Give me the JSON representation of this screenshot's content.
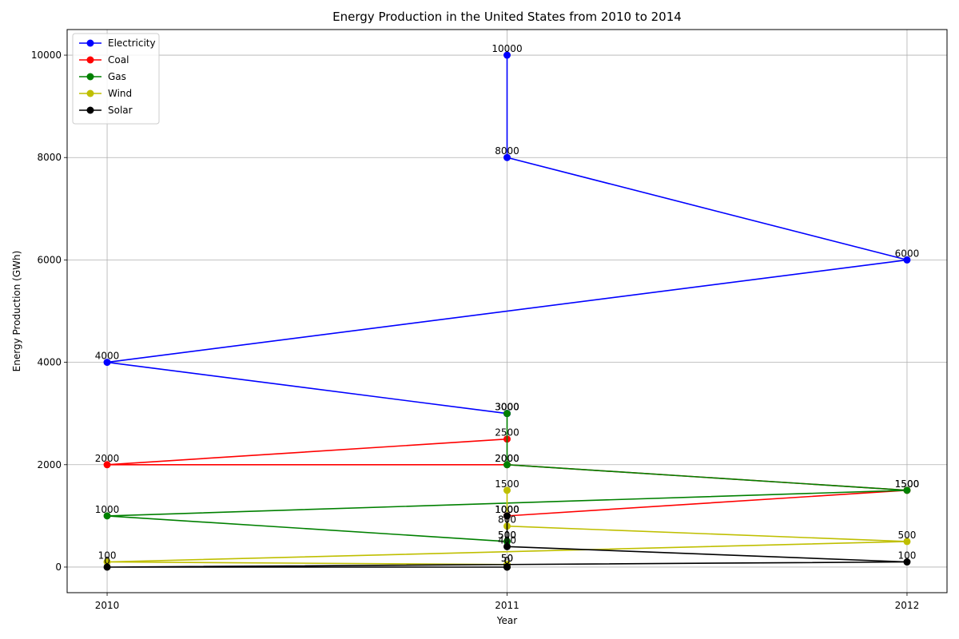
{
  "chart_data": {
    "type": "line",
    "title": "Energy Production in the United States from 2010 to 2014",
    "xlabel": "Year",
    "ylabel": "Energy Production (GWh)",
    "xlim": [
      2009.9,
      2012.1
    ],
    "ylim": [
      -500,
      10500
    ],
    "xticks": [
      2010,
      2011,
      2012
    ],
    "yticks": [
      0,
      2000,
      4000,
      6000,
      8000,
      10000
    ],
    "grid": true,
    "legend_position": "top-left",
    "series": [
      {
        "name": "Electricity",
        "color": "#0000ff",
        "x": [
          2011,
          2011,
          2012,
          2010,
          2011,
          2011
        ],
        "y": [
          10000,
          8000,
          6000,
          4000,
          3000,
          3000
        ]
      },
      {
        "name": "Coal",
        "color": "#ff0000",
        "x": [
          2011,
          2010,
          2011,
          2012,
          2011,
          2011
        ],
        "y": [
          2500,
          2000,
          2000,
          1500,
          1000,
          1000
        ]
      },
      {
        "name": "Gas",
        "color": "#008000",
        "x": [
          2011,
          2011,
          2012,
          2010,
          2011,
          2011
        ],
        "y": [
          3000,
          2000,
          1500,
          1000,
          500,
          500
        ]
      },
      {
        "name": "Wind",
        "color": "#bfbf00",
        "x": [
          2011,
          2011,
          2012,
          2010,
          2011,
          2011
        ],
        "y": [
          1500,
          800,
          500,
          100,
          50,
          50
        ]
      },
      {
        "name": "Solar",
        "color": "#000000",
        "x": [
          2011,
          2011,
          2012,
          2010,
          2011,
          2011
        ],
        "y": [
          1000,
          400,
          100,
          0,
          0,
          0
        ]
      }
    ]
  }
}
